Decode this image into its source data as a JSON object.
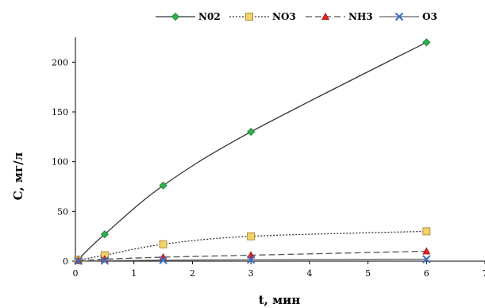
{
  "chart_data": {
    "type": "line",
    "xlabel": "t, мин",
    "ylabel": "C, мг/л",
    "xlim": [
      0,
      7
    ],
    "ylim": [
      0,
      225
    ],
    "x_ticks": [
      0,
      1,
      2,
      3,
      4,
      5,
      6,
      7
    ],
    "y_ticks": [
      0,
      50,
      100,
      150,
      200
    ],
    "grid": false,
    "legend_position": "top",
    "series": [
      {
        "name": "N02",
        "marker": "diamond",
        "line_style": "solid",
        "line_color": "#333333",
        "marker_color": "#2db34a",
        "x": [
          0.05,
          0.5,
          1.5,
          3.0,
          6.0
        ],
        "y": [
          2,
          27,
          76,
          130,
          220
        ]
      },
      {
        "name": "NO3",
        "marker": "square",
        "line_style": "dotted",
        "line_color": "#333333",
        "marker_color": "#f2d36b",
        "x": [
          0.05,
          0.5,
          1.5,
          3.0,
          6.0
        ],
        "y": [
          1,
          6,
          17,
          25,
          30
        ]
      },
      {
        "name": "NH3",
        "marker": "triangle",
        "line_style": "dashed",
        "line_color": "#555555",
        "marker_color": "#e02020",
        "x": [
          0.05,
          0.5,
          1.5,
          3.0,
          6.0
        ],
        "y": [
          0.5,
          2,
          4,
          6,
          10
        ]
      },
      {
        "name": "O3",
        "marker": "x",
        "line_style": "solid",
        "line_color": "#666666",
        "marker_color": "#3b6fc4",
        "x": [
          0.05,
          0.5,
          1.5,
          3.0,
          6.0
        ],
        "y": [
          0.2,
          0.5,
          1,
          1.5,
          2
        ]
      }
    ]
  }
}
